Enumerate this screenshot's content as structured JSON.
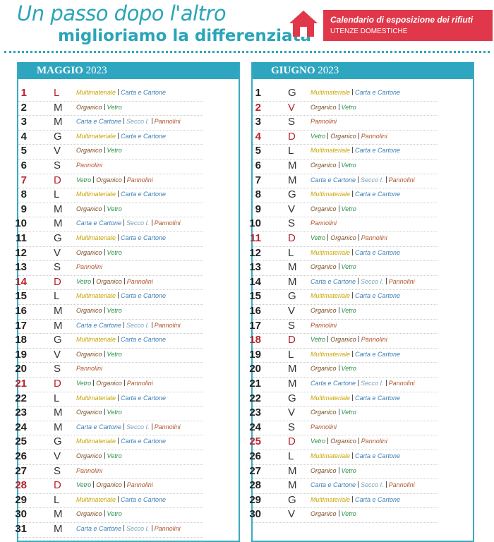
{
  "header": {
    "title_line1": "Un passo dopo l'altro",
    "title_line2": "miglioriamo la differenziata"
  },
  "badge": {
    "title": "Calendario di esposizione dei rifiuti",
    "subtitle": "UTENZE DOMESTICHE"
  },
  "highlight_color": "#b5242f",
  "item_colors": {
    "Multimateriale": "#c9a400",
    "Carta e Cartone": "#3a7db5",
    "Organico": "#7a4f25",
    "Vetro": "#2a9148",
    "Secco I.": "#7a9fb5",
    "Pannolini": "#b0552e"
  },
  "months": [
    {
      "name": "MAGGIO",
      "year": "2023",
      "days": [
        {
          "day": 1,
          "weekday": "L",
          "highlight": true,
          "items": [
            "Multimateriale",
            "Carta e Cartone"
          ]
        },
        {
          "day": 2,
          "weekday": "M",
          "items": [
            "Organico",
            "Vetro"
          ]
        },
        {
          "day": 3,
          "weekday": "M",
          "items": [
            "Carta e Cartone",
            "Secco I.",
            "Pannolini"
          ]
        },
        {
          "day": 4,
          "weekday": "G",
          "items": [
            "Multimateriale",
            "Carta e Cartone"
          ]
        },
        {
          "day": 5,
          "weekday": "V",
          "items": [
            "Organico",
            "Vetro"
          ]
        },
        {
          "day": 6,
          "weekday": "S",
          "items": [
            "Pannolini"
          ]
        },
        {
          "day": 7,
          "weekday": "D",
          "highlight": true,
          "items": [
            "Vetro",
            "Organico",
            "Pannolini"
          ]
        },
        {
          "day": 8,
          "weekday": "L",
          "items": [
            "Multimateriale",
            "Carta e Cartone"
          ]
        },
        {
          "day": 9,
          "weekday": "M",
          "items": [
            "Organico",
            "Vetro"
          ]
        },
        {
          "day": 10,
          "weekday": "M",
          "items": [
            "Carta e Cartone",
            "Secco I.",
            "Pannolini"
          ]
        },
        {
          "day": 11,
          "weekday": "G",
          "items": [
            "Multimateriale",
            "Carta e Cartone"
          ]
        },
        {
          "day": 12,
          "weekday": "V",
          "items": [
            "Organico",
            "Vetro"
          ]
        },
        {
          "day": 13,
          "weekday": "S",
          "items": [
            "Pannolini"
          ]
        },
        {
          "day": 14,
          "weekday": "D",
          "highlight": true,
          "items": [
            "Vetro",
            "Organico",
            "Pannolini"
          ]
        },
        {
          "day": 15,
          "weekday": "L",
          "items": [
            "Multimateriale",
            "Carta e Cartone"
          ]
        },
        {
          "day": 16,
          "weekday": "M",
          "items": [
            "Organico",
            "Vetro"
          ]
        },
        {
          "day": 17,
          "weekday": "M",
          "items": [
            "Carta e Cartone",
            "Secco I.",
            "Pannolini"
          ]
        },
        {
          "day": 18,
          "weekday": "G",
          "items": [
            "Multimateriale",
            "Carta e Cartone"
          ]
        },
        {
          "day": 19,
          "weekday": "V",
          "items": [
            "Organico",
            "Vetro"
          ]
        },
        {
          "day": 20,
          "weekday": "S",
          "items": [
            "Pannolini"
          ]
        },
        {
          "day": 21,
          "weekday": "D",
          "highlight": true,
          "items": [
            "Vetro",
            "Organico",
            "Pannolini"
          ]
        },
        {
          "day": 22,
          "weekday": "L",
          "items": [
            "Multimateriale",
            "Carta e Cartone"
          ]
        },
        {
          "day": 23,
          "weekday": "M",
          "items": [
            "Organico",
            "Vetro"
          ]
        },
        {
          "day": 24,
          "weekday": "M",
          "items": [
            "Carta e Cartone",
            "Secco I.",
            "Pannolini"
          ]
        },
        {
          "day": 25,
          "weekday": "G",
          "items": [
            "Multimateriale",
            "Carta e Cartone"
          ]
        },
        {
          "day": 26,
          "weekday": "V",
          "items": [
            "Organico",
            "Vetro"
          ]
        },
        {
          "day": 27,
          "weekday": "S",
          "items": [
            "Pannolini"
          ]
        },
        {
          "day": 28,
          "weekday": "D",
          "highlight": true,
          "items": [
            "Vetro",
            "Organico",
            "Pannolini"
          ]
        },
        {
          "day": 29,
          "weekday": "L",
          "items": [
            "Multimateriale",
            "Carta e Cartone"
          ]
        },
        {
          "day": 30,
          "weekday": "M",
          "items": [
            "Organico",
            "Vetro"
          ]
        },
        {
          "day": 31,
          "weekday": "M",
          "items": [
            "Carta e Cartone",
            "Secco I.",
            "Pannolini"
          ]
        }
      ]
    },
    {
      "name": "GIUGNO",
      "year": "2023",
      "days": [
        {
          "day": 1,
          "weekday": "G",
          "items": [
            "Multimateriale",
            "Carta e Cartone"
          ]
        },
        {
          "day": 2,
          "weekday": "V",
          "highlight": true,
          "items": [
            "Organico",
            "Vetro"
          ]
        },
        {
          "day": 3,
          "weekday": "S",
          "items": [
            "Pannolini"
          ]
        },
        {
          "day": 4,
          "weekday": "D",
          "highlight": true,
          "items": [
            "Vetro",
            "Organico",
            "Pannolini"
          ]
        },
        {
          "day": 5,
          "weekday": "L",
          "items": [
            "Multimateriale",
            "Carta e Cartone"
          ]
        },
        {
          "day": 6,
          "weekday": "M",
          "items": [
            "Organico",
            "Vetro"
          ]
        },
        {
          "day": 7,
          "weekday": "M",
          "items": [
            "Carta e Cartone",
            "Secco I.",
            "Pannolini"
          ]
        },
        {
          "day": 8,
          "weekday": "G",
          "items": [
            "Multimateriale",
            "Carta e Cartone"
          ]
        },
        {
          "day": 9,
          "weekday": "V",
          "items": [
            "Organico",
            "Vetro"
          ]
        },
        {
          "day": 10,
          "weekday": "S",
          "items": [
            "Pannolini"
          ]
        },
        {
          "day": 11,
          "weekday": "D",
          "highlight": true,
          "items": [
            "Vetro",
            "Organico",
            "Pannolini"
          ]
        },
        {
          "day": 12,
          "weekday": "L",
          "items": [
            "Multimateriale",
            "Carta e Cartone"
          ]
        },
        {
          "day": 13,
          "weekday": "M",
          "items": [
            "Organico",
            "Vetro"
          ]
        },
        {
          "day": 14,
          "weekday": "M",
          "items": [
            "Carta e Cartone",
            "Secco I.",
            "Pannolini"
          ]
        },
        {
          "day": 15,
          "weekday": "G",
          "items": [
            "Multimateriale",
            "Carta e Cartone"
          ]
        },
        {
          "day": 16,
          "weekday": "V",
          "items": [
            "Organico",
            "Vetro"
          ]
        },
        {
          "day": 17,
          "weekday": "S",
          "items": [
            "Pannolini"
          ]
        },
        {
          "day": 18,
          "weekday": "D",
          "highlight": true,
          "items": [
            "Vetro",
            "Organico",
            "Pannolini"
          ]
        },
        {
          "day": 19,
          "weekday": "L",
          "items": [
            "Multimateriale",
            "Carta e Cartone"
          ]
        },
        {
          "day": 20,
          "weekday": "M",
          "items": [
            "Organico",
            "Vetro"
          ]
        },
        {
          "day": 21,
          "weekday": "M",
          "items": [
            "Carta e Cartone",
            "Secco I.",
            "Pannolini"
          ]
        },
        {
          "day": 22,
          "weekday": "G",
          "items": [
            "Multimateriale",
            "Carta e Cartone"
          ]
        },
        {
          "day": 23,
          "weekday": "V",
          "items": [
            "Organico",
            "Vetro"
          ]
        },
        {
          "day": 24,
          "weekday": "S",
          "items": [
            "Pannolini"
          ]
        },
        {
          "day": 25,
          "weekday": "D",
          "highlight": true,
          "items": [
            "Vetro",
            "Organico",
            "Pannolini"
          ]
        },
        {
          "day": 26,
          "weekday": "L",
          "items": [
            "Multimateriale",
            "Carta e Cartone"
          ]
        },
        {
          "day": 27,
          "weekday": "M",
          "items": [
            "Organico",
            "Vetro"
          ]
        },
        {
          "day": 28,
          "weekday": "M",
          "items": [
            "Carta e Cartone",
            "Secco I.",
            "Pannolini"
          ]
        },
        {
          "day": 29,
          "weekday": "G",
          "items": [
            "Multimateriale",
            "Carta e Cartone"
          ]
        },
        {
          "day": 30,
          "weekday": "V",
          "items": [
            "Organico",
            "Vetro"
          ]
        }
      ]
    }
  ]
}
